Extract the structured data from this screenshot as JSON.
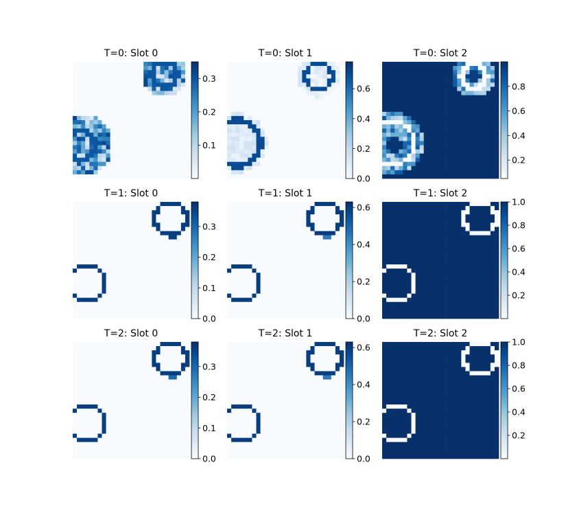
{
  "figure": {
    "background": "#ffffff"
  },
  "colormap": {
    "name": "Blues",
    "low": "#f7fbff",
    "high": "#08306b"
  },
  "chart_data": [
    {
      "type": "heatmap",
      "title": "T=0: Slot 0",
      "grid": false,
      "colorbar": {
        "ticks": [
          "0.1",
          "0.2",
          "0.3"
        ],
        "range": [
          0.0,
          0.35
        ],
        "tick_values": [
          0.1,
          0.2,
          0.3
        ]
      },
      "mask": {
        "rings": [
          {
            "cx": 2.0,
            "cy": 20.0,
            "r": 3.5,
            "w": 1.2
          },
          {
            "cx": 22.0,
            "cy": 3.0,
            "r": 3.0,
            "w": 1.2
          }
        ],
        "inner": [
          {
            "cx": 2.0,
            "cy": 20.0,
            "r": 7.5,
            "v": 0.18,
            "noise": 0.14
          },
          {
            "cx": 22.0,
            "cy": 3.0,
            "r": 5.5,
            "v": 0.18,
            "noise": 0.14
          }
        ],
        "background": 0.0,
        "ring_value": 0.3,
        "tail": null
      }
    },
    {
      "type": "heatmap",
      "title": "T=0: Slot 1",
      "grid": false,
      "colorbar": {
        "ticks": [
          "0.0",
          "0.2",
          "0.4",
          "0.6"
        ],
        "range": [
          0.0,
          0.78
        ],
        "tick_values": [
          0.0,
          0.2,
          0.4,
          0.6
        ]
      },
      "mask": {
        "rings": [
          {
            "cx": 2.5,
            "cy": 19.5,
            "r": 5.5,
            "w": 1.0
          },
          {
            "cx": 22.0,
            "cy": 3.5,
            "r": 3.2,
            "w": 1.0
          }
        ],
        "inner": [
          {
            "cx": 2.5,
            "cy": 19.5,
            "r": 7.2,
            "v": 0.1,
            "noise": 0.06
          },
          {
            "cx": 22.0,
            "cy": 3.5,
            "r": 5.2,
            "v": 0.08,
            "noise": 0.06
          }
        ],
        "background": 0.0,
        "ring_value": 0.7,
        "tail": null
      }
    },
    {
      "type": "heatmap",
      "title": "T=0: Slot 2",
      "grid": false,
      "colorbar": {
        "ticks": [
          "0.2",
          "0.4",
          "0.6",
          "0.8"
        ],
        "range": [
          0.05,
          1.0
        ],
        "tick_values": [
          0.2,
          0.4,
          0.6,
          0.8
        ]
      },
      "mask": {
        "rings": [
          {
            "cx": 2.5,
            "cy": 19.5,
            "r": 5.2,
            "w": 1.0
          },
          {
            "cx": 22.0,
            "cy": 3.5,
            "r": 3.0,
            "w": 1.0
          }
        ],
        "inner": [
          {
            "cx": 2.5,
            "cy": 19.5,
            "r": 7.5,
            "v": 0.55,
            "noise": 0.3
          },
          {
            "cx": 22.0,
            "cy": 3.5,
            "r": 5.0,
            "v": 0.55,
            "noise": 0.3
          }
        ],
        "background": 1.0,
        "ring_value": 0.05,
        "tail": null,
        "core": [
          {
            "cx": 3.0,
            "cy": 20.0,
            "r": 2.0,
            "v": 0.98
          },
          {
            "cx": 22.0,
            "cy": 3.5,
            "r": 1.6,
            "v": 0.95
          }
        ]
      }
    },
    {
      "type": "heatmap",
      "title": "T=1: Slot 0",
      "grid": false,
      "colorbar": {
        "ticks": [
          "0.0",
          "0.1",
          "0.2",
          "0.3"
        ],
        "range": [
          0.0,
          0.38
        ],
        "tick_values": [
          0.0,
          0.1,
          0.2,
          0.3
        ]
      },
      "mask": {
        "rings": [
          {
            "cx": 3.5,
            "cy": 19.5,
            "r": 4.3,
            "w": 0.9
          },
          {
            "cx": 23.5,
            "cy": 4.0,
            "r": 3.8,
            "w": 0.9
          }
        ],
        "inner": [],
        "background": 0.0,
        "ring_value": 0.36,
        "tail": {
          "x": 23,
          "y": 8,
          "v": 0.36
        }
      }
    },
    {
      "type": "heatmap",
      "title": "T=1: Slot 1",
      "grid": false,
      "colorbar": {
        "ticks": [
          "0.0",
          "0.2",
          "0.4",
          "0.6"
        ],
        "range": [
          0.0,
          0.63
        ],
        "tick_values": [
          0.0,
          0.2,
          0.4,
          0.6
        ]
      },
      "mask": {
        "rings": [
          {
            "cx": 3.5,
            "cy": 19.5,
            "r": 4.3,
            "w": 0.9
          },
          {
            "cx": 23.5,
            "cy": 4.0,
            "r": 3.8,
            "w": 0.9
          }
        ],
        "inner": [],
        "background": 0.0,
        "ring_value": 0.6,
        "tail": {
          "x": 23,
          "y": 8,
          "v": 0.45
        }
      }
    },
    {
      "type": "heatmap",
      "title": "T=1: Slot 2",
      "grid": false,
      "colorbar": {
        "ticks": [
          "0.2",
          "0.4",
          "0.6",
          "0.8",
          "1.0"
        ],
        "range": [
          0.0,
          1.0
        ],
        "tick_values": [
          0.2,
          0.4,
          0.6,
          0.8,
          1.0
        ]
      },
      "mask": {
        "rings": [
          {
            "cx": 3.5,
            "cy": 19.5,
            "r": 4.3,
            "w": 0.9
          },
          {
            "cx": 23.5,
            "cy": 4.0,
            "r": 3.8,
            "w": 0.9
          }
        ],
        "inner": [],
        "background": 1.0,
        "ring_value": 0.0,
        "tail": null
      }
    },
    {
      "type": "heatmap",
      "title": "T=2: Slot 0",
      "grid": false,
      "colorbar": {
        "ticks": [
          "0.0",
          "0.1",
          "0.2",
          "0.3"
        ],
        "range": [
          0.0,
          0.38
        ],
        "tick_values": [
          0.0,
          0.1,
          0.2,
          0.3
        ]
      },
      "mask": {
        "rings": [
          {
            "cx": 3.5,
            "cy": 19.5,
            "r": 4.3,
            "w": 0.9
          },
          {
            "cx": 23.5,
            "cy": 4.0,
            "r": 3.8,
            "w": 0.9
          }
        ],
        "inner": [],
        "background": 0.0,
        "ring_value": 0.36,
        "tail": {
          "x": 23,
          "y": 8,
          "v": 0.3
        }
      }
    },
    {
      "type": "heatmap",
      "title": "T=2: Slot 1",
      "grid": false,
      "colorbar": {
        "ticks": [
          "0.0",
          "0.2",
          "0.4",
          "0.6"
        ],
        "range": [
          0.0,
          0.63
        ],
        "tick_values": [
          0.0,
          0.2,
          0.4,
          0.6
        ]
      },
      "mask": {
        "rings": [
          {
            "cx": 3.5,
            "cy": 19.5,
            "r": 4.3,
            "w": 0.9
          },
          {
            "cx": 23.5,
            "cy": 4.0,
            "r": 3.8,
            "w": 0.9
          }
        ],
        "inner": [],
        "background": 0.0,
        "ring_value": 0.6,
        "tail": {
          "x": 23,
          "y": 8,
          "v": 0.45
        }
      }
    },
    {
      "type": "heatmap",
      "title": "T=2: Slot 2",
      "grid": false,
      "colorbar": {
        "ticks": [
          "0.2",
          "0.4",
          "0.6",
          "0.8",
          "1.0"
        ],
        "range": [
          0.0,
          1.0
        ],
        "tick_values": [
          0.2,
          0.4,
          0.6,
          0.8,
          1.0
        ]
      },
      "mask": {
        "rings": [
          {
            "cx": 3.5,
            "cy": 19.5,
            "r": 4.3,
            "w": 0.9
          },
          {
            "cx": 23.5,
            "cy": 4.0,
            "r": 3.8,
            "w": 0.9
          }
        ],
        "inner": [],
        "background": 1.0,
        "ring_value": 0.0,
        "tail": null
      }
    }
  ]
}
